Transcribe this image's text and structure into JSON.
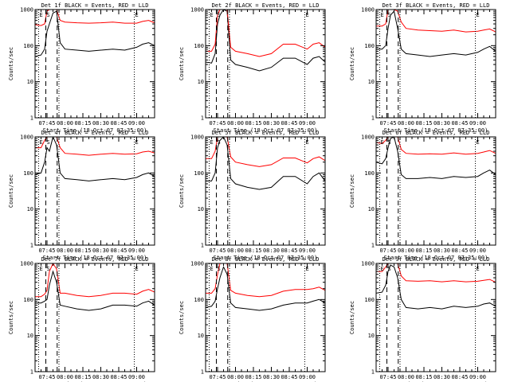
{
  "figure": {
    "xlabel": "Start Time (18-Oct-07 07:35:00)",
    "ylabel": "Counts/sec"
  },
  "chart_data": {
    "type": "line",
    "x_unit": "time (UT, 18-Oct-07)",
    "xlim": [
      "07:35:00",
      "09:15:00"
    ],
    "ylim": [
      1,
      1000
    ],
    "yscale": "log",
    "xticks": [
      "07:45",
      "08:00",
      "08:15",
      "08:30",
      "08:45",
      "09:00"
    ],
    "yticks": [
      "1",
      "10",
      "100",
      "1000"
    ],
    "markers": [
      {
        "label": "E",
        "time": "07:38:00",
        "style": "dotted"
      },
      {
        "label": "S",
        "time": "07:44:00",
        "style": "dashed"
      },
      {
        "label": "",
        "time": "07:53:30",
        "style": "dashed"
      },
      {
        "label": "",
        "time": "07:55:00",
        "style": "dotted"
      },
      {
        "label": "E",
        "time": "08:58:00",
        "style": "dotted"
      }
    ],
    "series_colors": {
      "events": "#000000",
      "lld": "#ff0000"
    },
    "panels": [
      {
        "title": "Det 1f BLACK = Events, RED = LLD",
        "series": [
          {
            "name": "Events",
            "x": [
              "07:35",
              "07:40",
              "07:43",
              "07:45",
              "07:47",
              "07:50",
              "07:53",
              "07:56",
              "08:00",
              "08:10",
              "08:20",
              "08:30",
              "08:40",
              "08:50",
              "09:00",
              "09:05",
              "09:10",
              "09:15"
            ],
            "y": [
              50,
              55,
              80,
              250,
              400,
              800,
              900,
              120,
              80,
              75,
              70,
              75,
              80,
              75,
              90,
              110,
              120,
              100
            ]
          },
          {
            "name": "LLD",
            "x": [
              "07:35",
              "07:40",
              "07:43",
              "07:45",
              "07:47",
              "07:50",
              "07:53",
              "07:56",
              "08:00",
              "08:10",
              "08:20",
              "08:30",
              "08:40",
              "08:50",
              "09:00",
              "09:05",
              "09:10",
              "09:15"
            ],
            "y": [
              380,
              360,
              400,
              900,
              1000,
              1000,
              1000,
              500,
              450,
              430,
              420,
              430,
              450,
              420,
              420,
              470,
              500,
              430
            ]
          }
        ]
      },
      {
        "title": "Det 2f BLACK = Events, RED = LLD",
        "series": [
          {
            "name": "Events",
            "x": [
              "07:35",
              "07:40",
              "07:43",
              "07:45",
              "07:47",
              "07:50",
              "07:53",
              "07:56",
              "08:00",
              "08:10",
              "08:20",
              "08:30",
              "08:40",
              "08:50",
              "09:00",
              "09:05",
              "09:10",
              "09:15"
            ],
            "y": [
              35,
              33,
              60,
              400,
              700,
              1000,
              900,
              40,
              30,
              25,
              20,
              25,
              45,
              45,
              30,
              45,
              50,
              35
            ]
          },
          {
            "name": "LLD",
            "x": [
              "07:35",
              "07:40",
              "07:43",
              "07:45",
              "07:47",
              "07:50",
              "07:53",
              "07:56",
              "08:00",
              "08:10",
              "08:20",
              "08:30",
              "08:40",
              "08:50",
              "09:00",
              "09:05",
              "09:10",
              "09:15"
            ],
            "y": [
              70,
              70,
              110,
              700,
              1000,
              1000,
              1000,
              90,
              70,
              60,
              50,
              60,
              110,
              110,
              80,
              110,
              120,
              90
            ]
          }
        ]
      },
      {
        "title": "Det 3f BLACK = Events, RED = LLD",
        "series": [
          {
            "name": "Events",
            "x": [
              "07:35",
              "07:40",
              "07:43",
              "07:45",
              "07:47",
              "07:50",
              "07:53",
              "07:56",
              "08:00",
              "08:10",
              "08:20",
              "08:30",
              "08:40",
              "08:50",
              "09:00",
              "09:05",
              "09:10",
              "09:15"
            ],
            "y": [
              80,
              80,
              100,
              300,
              700,
              900,
              300,
              80,
              60,
              55,
              50,
              55,
              60,
              55,
              65,
              80,
              95,
              70
            ]
          },
          {
            "name": "LLD",
            "x": [
              "07:35",
              "07:40",
              "07:43",
              "07:45",
              "07:47",
              "07:50",
              "07:53",
              "07:56",
              "08:00",
              "08:10",
              "08:20",
              "08:30",
              "08:40",
              "08:50",
              "09:00",
              "09:05",
              "09:10",
              "09:15"
            ],
            "y": [
              350,
              350,
              400,
              1000,
              1000,
              1000,
              900,
              450,
              300,
              270,
              260,
              250,
              270,
              240,
              250,
              270,
              290,
              240
            ]
          }
        ]
      },
      {
        "title": "Det 4f BLACK = Events, RED = LLD",
        "series": [
          {
            "name": "Events",
            "x": [
              "07:35",
              "07:40",
              "07:43",
              "07:45",
              "07:47",
              "07:50",
              "07:53",
              "07:56",
              "08:00",
              "08:10",
              "08:20",
              "08:30",
              "08:40",
              "08:50",
              "09:00",
              "09:05",
              "09:10",
              "09:15"
            ],
            "y": [
              90,
              100,
              200,
              500,
              400,
              1000,
              600,
              100,
              70,
              65,
              60,
              65,
              70,
              65,
              75,
              90,
              100,
              80
            ]
          },
          {
            "name": "LLD",
            "x": [
              "07:35",
              "07:40",
              "07:43",
              "07:45",
              "07:47",
              "07:50",
              "07:53",
              "07:56",
              "08:00",
              "08:10",
              "08:20",
              "08:30",
              "08:40",
              "08:50",
              "09:00",
              "09:05",
              "09:10",
              "09:15"
            ],
            "y": [
              500,
              500,
              800,
              1000,
              1000,
              1000,
              1000,
              500,
              350,
              330,
              310,
              330,
              350,
              330,
              340,
              380,
              400,
              360
            ]
          }
        ]
      },
      {
        "title": "Det 5f BLACK = Events, RED = LLD",
        "series": [
          {
            "name": "Events",
            "x": [
              "07:35",
              "07:40",
              "07:43",
              "07:45",
              "07:47",
              "07:50",
              "07:53",
              "07:56",
              "08:00",
              "08:10",
              "08:20",
              "08:30",
              "08:40",
              "08:50",
              "09:00",
              "09:05",
              "09:10",
              "09:15"
            ],
            "y": [
              60,
              60,
              100,
              500,
              800,
              1000,
              600,
              70,
              50,
              40,
              35,
              40,
              80,
              80,
              50,
              80,
              100,
              60
            ]
          },
          {
            "name": "LLD",
            "x": [
              "07:35",
              "07:40",
              "07:43",
              "07:45",
              "07:47",
              "07:50",
              "07:53",
              "07:56",
              "08:00",
              "08:10",
              "08:20",
              "08:30",
              "08:40",
              "08:50",
              "09:00",
              "09:05",
              "09:10",
              "09:15"
            ],
            "y": [
              250,
              250,
              400,
              1000,
              1000,
              1000,
              1000,
              280,
              200,
              170,
              150,
              170,
              260,
              260,
              190,
              250,
              280,
              220
            ]
          }
        ]
      },
      {
        "title": "Det 6f BLACK = Events, RED = LLD",
        "series": [
          {
            "name": "Events",
            "x": [
              "07:35",
              "07:40",
              "07:43",
              "07:45",
              "07:47",
              "07:50",
              "07:53",
              "07:56",
              "08:00",
              "08:10",
              "08:20",
              "08:30",
              "08:40",
              "08:50",
              "09:00",
              "09:05",
              "09:10",
              "09:15"
            ],
            "y": [
              200,
              180,
              250,
              500,
              900,
              1000,
              400,
              90,
              70,
              70,
              75,
              70,
              80,
              75,
              80,
              100,
              120,
              90
            ]
          },
          {
            "name": "LLD",
            "x": [
              "07:35",
              "07:40",
              "07:43",
              "07:45",
              "07:47",
              "07:50",
              "07:53",
              "07:56",
              "08:00",
              "08:10",
              "08:20",
              "08:30",
              "08:40",
              "08:50",
              "09:00",
              "09:05",
              "09:10",
              "09:15"
            ],
            "y": [
              700,
              650,
              800,
              1000,
              1000,
              1000,
              1000,
              450,
              350,
              330,
              340,
              330,
              360,
              330,
              350,
              380,
              420,
              350
            ]
          }
        ]
      },
      {
        "title": "Det 7f BLACK = Events, RED = LLD",
        "series": [
          {
            "name": "Events",
            "x": [
              "07:35",
              "07:40",
              "07:43",
              "07:45",
              "07:47",
              "07:50",
              "07:53",
              "07:56",
              "08:00",
              "08:10",
              "08:20",
              "08:30",
              "08:40",
              "08:50",
              "09:00",
              "09:05",
              "09:10",
              "09:15"
            ],
            "y": [
              80,
              80,
              90,
              100,
              250,
              600,
              300,
              70,
              65,
              55,
              50,
              55,
              70,
              70,
              65,
              80,
              90,
              70
            ]
          },
          {
            "name": "LLD",
            "x": [
              "07:35",
              "07:40",
              "07:43",
              "07:45",
              "07:47",
              "07:50",
              "07:53",
              "07:56",
              "08:00",
              "08:10",
              "08:20",
              "08:30",
              "08:40",
              "08:50",
              "09:00",
              "09:05",
              "09:10",
              "09:15"
            ],
            "y": [
              120,
              120,
              140,
              180,
              600,
              1000,
              700,
              150,
              150,
              130,
              120,
              130,
              150,
              150,
              140,
              170,
              190,
              160
            ]
          }
        ]
      },
      {
        "title": "Det 8f BLACK = Events, RED = LLD",
        "series": [
          {
            "name": "Events",
            "x": [
              "07:35",
              "07:40",
              "07:43",
              "07:45",
              "07:47",
              "07:50",
              "07:53",
              "07:56",
              "08:00",
              "08:10",
              "08:20",
              "08:30",
              "08:40",
              "08:50",
              "09:00",
              "09:05",
              "09:10",
              "09:15"
            ],
            "y": [
              60,
              65,
              90,
              200,
              400,
              800,
              500,
              80,
              60,
              55,
              50,
              55,
              70,
              80,
              80,
              90,
              100,
              80
            ]
          },
          {
            "name": "LLD",
            "x": [
              "07:35",
              "07:40",
              "07:43",
              "07:45",
              "07:47",
              "07:50",
              "07:53",
              "07:56",
              "08:00",
              "08:10",
              "08:20",
              "08:30",
              "08:40",
              "08:50",
              "09:00",
              "09:05",
              "09:10",
              "09:15"
            ],
            "y": [
              150,
              150,
              200,
              500,
              1000,
              1000,
              1000,
              180,
              150,
              130,
              120,
              130,
              170,
              190,
              190,
              200,
              220,
              180
            ]
          }
        ]
      },
      {
        "title": "Det 9f BLACK = Events, RED = LLD",
        "series": [
          {
            "name": "Events",
            "x": [
              "07:35",
              "07:40",
              "07:43",
              "07:45",
              "07:47",
              "07:50",
              "07:53",
              "07:56",
              "08:00",
              "08:10",
              "08:20",
              "08:30",
              "08:40",
              "08:50",
              "09:00",
              "09:05",
              "09:10",
              "09:15"
            ],
            "y": [
              150,
              160,
              250,
              600,
              900,
              800,
              400,
              100,
              60,
              55,
              60,
              55,
              65,
              60,
              65,
              75,
              80,
              65
            ]
          },
          {
            "name": "LLD",
            "x": [
              "07:35",
              "07:40",
              "07:43",
              "07:45",
              "07:47",
              "07:50",
              "07:53",
              "07:56",
              "08:00",
              "08:10",
              "08:20",
              "08:30",
              "08:40",
              "08:50",
              "09:00",
              "09:05",
              "09:10",
              "09:15"
            ],
            "y": [
              600,
              600,
              800,
              1000,
              1000,
              1000,
              1000,
              450,
              330,
              320,
              330,
              310,
              330,
              310,
              320,
              340,
              360,
              300
            ]
          }
        ]
      }
    ]
  }
}
